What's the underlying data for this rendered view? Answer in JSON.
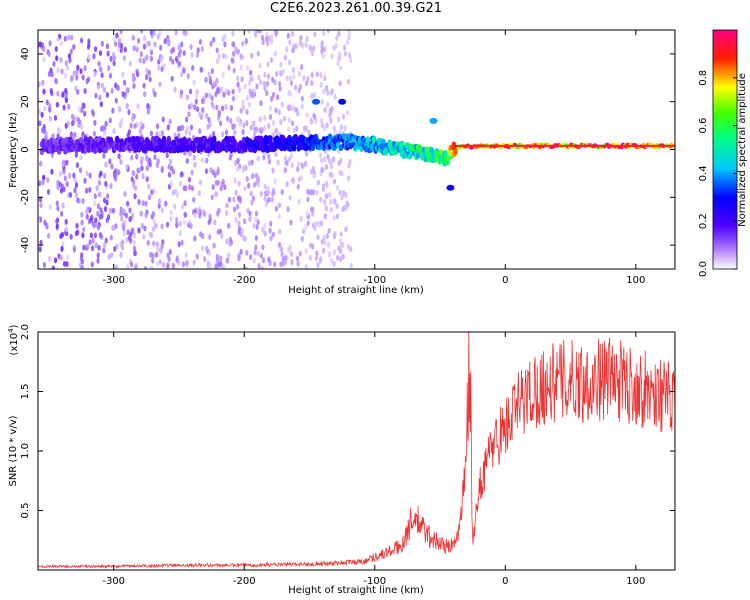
{
  "title": "C2E6.2023.261.00.39.G21",
  "chart_data": [
    {
      "type": "heatmap",
      "title": "",
      "xlabel": "Height of straight line (km)",
      "ylabel": "Frequency (Hz)",
      "xlim": [
        -358,
        130
      ],
      "ylim": [
        -50,
        50
      ],
      "xticks": [
        -300,
        -200,
        -100,
        0,
        100
      ],
      "yticks": [
        -40,
        -20,
        0,
        20,
        40
      ],
      "colorbar": {
        "label": "Normalized spectral amplitude",
        "range": [
          0,
          1
        ],
        "ticks": [
          "0.0",
          "0.2",
          "0.4",
          "0.6",
          "0.8"
        ],
        "colormap": [
          "#ffffff",
          "#7a00ff",
          "#0000ff",
          "#00e0ff",
          "#00ff00",
          "#ffff00",
          "#ff0000",
          "#ff0080"
        ]
      },
      "signal_track": [
        {
          "x": -350,
          "y": 1.5,
          "amp": 0.15
        },
        {
          "x": -300,
          "y": 2,
          "amp": 0.17
        },
        {
          "x": -250,
          "y": 2,
          "amp": 0.2
        },
        {
          "x": -200,
          "y": 2,
          "amp": 0.22
        },
        {
          "x": -150,
          "y": 3,
          "amp": 0.3
        },
        {
          "x": -120,
          "y": 3,
          "amp": 0.38
        },
        {
          "x": -100,
          "y": 2,
          "amp": 0.45
        },
        {
          "x": -80,
          "y": 0,
          "amp": 0.5
        },
        {
          "x": -60,
          "y": -2,
          "amp": 0.55
        },
        {
          "x": -45,
          "y": -4,
          "amp": 0.6
        },
        {
          "x": -38,
          "y": 1,
          "amp": 0.85
        },
        {
          "x": 0,
          "y": 1.5,
          "amp": 0.9
        },
        {
          "x": 50,
          "y": 1.5,
          "amp": 0.92
        },
        {
          "x": 100,
          "y": 1.5,
          "amp": 0.9
        },
        {
          "x": 128,
          "y": 1.5,
          "amp": 0.88
        }
      ],
      "features": [
        {
          "x": -145,
          "y": 20,
          "amp": 0.35
        },
        {
          "x": -125,
          "y": 20,
          "amp": 0.3
        },
        {
          "x": -55,
          "y": 12,
          "amp": 0.4
        },
        {
          "x": -42,
          "y": -16,
          "amp": 0.3
        }
      ]
    },
    {
      "type": "line",
      "title": "",
      "xlabel": "Height of straight line (km)",
      "ylabel": "SNR (10 * v/v)",
      "y_multiplier": "(x10",
      "y_multiplier_exp": "4",
      "xlim": [
        -358,
        130
      ],
      "ylim": [
        0,
        2.0
      ],
      "xticks": [
        -300,
        -200,
        -100,
        0,
        100
      ],
      "yticks": [
        "0.5",
        "1.0",
        "1.5",
        "2.0"
      ],
      "color": "#ee3333",
      "series": [
        {
          "x": [
            -358,
            -300,
            -250,
            -200,
            -150,
            -110,
            -90,
            -80,
            -70,
            -60,
            -50,
            -45,
            -40,
            -35,
            -30,
            -28,
            -25,
            -20,
            -10,
            0,
            10,
            20,
            30,
            40,
            50,
            60,
            70,
            80,
            90,
            100,
            110,
            120,
            130
          ],
          "y": [
            0.03,
            0.03,
            0.04,
            0.04,
            0.05,
            0.07,
            0.15,
            0.2,
            0.45,
            0.3,
            0.22,
            0.2,
            0.2,
            0.35,
            0.9,
            2.0,
            0.2,
            0.7,
            1.05,
            1.2,
            1.38,
            1.5,
            1.55,
            1.58,
            1.6,
            1.58,
            1.6,
            1.62,
            1.58,
            1.55,
            1.5,
            1.48,
            1.4
          ]
        }
      ]
    }
  ]
}
